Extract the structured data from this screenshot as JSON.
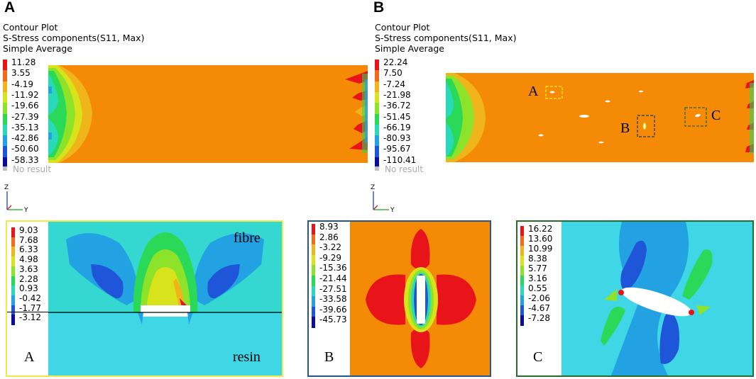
{
  "panels": {
    "A": {
      "letter": "A",
      "header": [
        "Contour Plot",
        "S-Stress components(S11, Max)",
        "Simple Average"
      ],
      "legend_values": [
        "11.28",
        "3.55",
        "-4.19",
        "-11.92",
        "-19.66",
        "-27.39",
        "-35.13",
        "-42.86",
        "-50.60",
        "-58.33"
      ],
      "no_result": "No result"
    },
    "B": {
      "letter": "B",
      "header": [
        "Contour Plot",
        "S-Stress components(S11, Max)",
        "Simple Average"
      ],
      "legend_values": [
        "22.24",
        "7.50",
        "-7.24",
        "-21.98",
        "-36.72",
        "-51.45",
        "-66.19",
        "-80.93",
        "-95.67",
        "-110.41"
      ],
      "no_result": "No result",
      "markers": [
        "A",
        "B",
        "C"
      ]
    }
  },
  "axes_triad": {
    "z": "Z",
    "y": "Y"
  },
  "details": {
    "A": {
      "label": "A",
      "legend_values": [
        "9.03",
        "7.68",
        "6.33",
        "4.98",
        "3.63",
        "2.28",
        "0.93",
        "-0.42",
        "-1.77",
        "-3.12"
      ],
      "fibre": "fibre",
      "resin": "resin"
    },
    "B": {
      "label": "B",
      "legend_values": [
        "8.93",
        "2.86",
        "-3.22",
        "-9.29",
        "-15.36",
        "-21.44",
        "-27.51",
        "-33.58",
        "-39.66",
        "-45.73"
      ]
    },
    "C": {
      "label": "C",
      "legend_values": [
        "16.22",
        "13.60",
        "10.99",
        "8.38",
        "5.77",
        "3.16",
        "0.55",
        "-2.06",
        "-4.67",
        "-7.28"
      ]
    }
  },
  "colors": {
    "scale": [
      "#e8141a",
      "#f26b1c",
      "#f0b51a",
      "#d9e31c",
      "#8de22a",
      "#29d957",
      "#29d9b9",
      "#22a2e2",
      "#1f55d8",
      "#0c0c9e"
    ],
    "orange_field": "#f58a06",
    "cyan_field": "#3fd6e6",
    "no_result": "#c0c0c0",
    "box_A": "#ffee22",
    "box_B": "#1e3e70",
    "box_C": "#2a6a2a"
  }
}
